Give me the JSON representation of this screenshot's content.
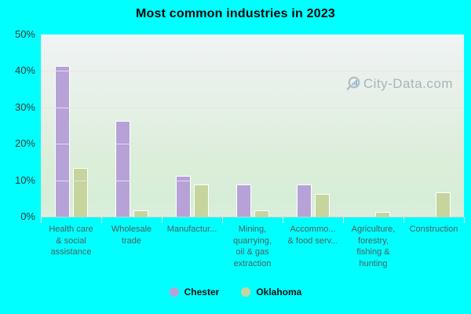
{
  "title": "Most common industries in 2023",
  "watermark": {
    "text": "City-Data.com"
  },
  "colors": {
    "page_background": "#00ffff",
    "chester_bar": "#b6a2d7",
    "oklahoma_bar": "#c6d59d",
    "bar_border": "#ffffff",
    "plot_gradient_top": "#f0f3f4",
    "plot_gradient_bottom": "#dcefde",
    "gridline": "#eae0ec",
    "axis_text": "#323c3a",
    "category_text": "#4d5f5f",
    "watermark_text": "#96a0ab"
  },
  "chart_data": {
    "type": "bar",
    "title": "Most common industries in 2023",
    "categories": [
      "Health care & social assistance",
      "Wholesale trade",
      "Manufacturing",
      "Mining, quarrying, oil & gas extraction",
      "Accommodation & food services",
      "Agriculture, forestry, fishing & hunting",
      "Construction"
    ],
    "category_display": [
      "Health care\n& social\nassistance",
      "Wholesale\ntrade",
      "Manufactur...",
      "Mining,\nquarrying,\noil & gas\nextraction",
      "Accommo...\n& food serv...",
      "Agriculture,\nforestry,\nfishing &\nhunting",
      "Construction"
    ],
    "series": [
      {
        "name": "Chester",
        "color": "#b6a2d7",
        "values": [
          41.5,
          26.5,
          11.5,
          9,
          9,
          0,
          0
        ]
      },
      {
        "name": "Oklahoma",
        "color": "#c6d59d",
        "values": [
          13.5,
          2,
          9,
          2,
          6.5,
          1.5,
          7
        ]
      }
    ],
    "ylim": [
      0,
      50
    ],
    "yticks": [
      "0%",
      "10%",
      "20%",
      "30%",
      "40%",
      "50%"
    ],
    "grid": "horizontal",
    "legend_position": "bottom"
  },
  "legend": {
    "items": [
      {
        "label": "Chester",
        "color": "#b6a2d7"
      },
      {
        "label": "Oklahoma",
        "color": "#c6d59d"
      }
    ]
  }
}
